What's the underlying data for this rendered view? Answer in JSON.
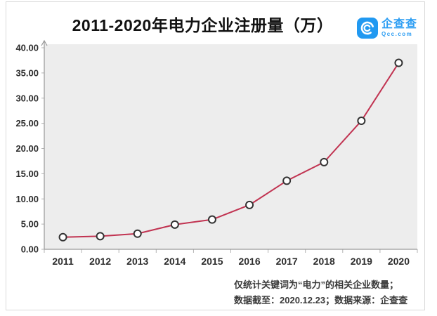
{
  "header": {
    "title": "2011-2020年电力企业注册量（万）",
    "logo": {
      "name": "企查查",
      "domain": "Qcc.com",
      "brand_color": "#2199f1"
    }
  },
  "chart_data": {
    "type": "line",
    "title": "2011-2020年电力企业注册量（万）",
    "categories": [
      "2011",
      "2012",
      "2013",
      "2014",
      "2015",
      "2016",
      "2017",
      "2018",
      "2019",
      "2020"
    ],
    "values": [
      2.4,
      2.6,
      3.1,
      4.9,
      5.9,
      8.8,
      13.6,
      17.3,
      25.5,
      37.0
    ],
    "xlabel": "",
    "ylabel": "",
    "ylim": [
      0,
      40
    ],
    "yticks": [
      0,
      5,
      10,
      15,
      20,
      25,
      30,
      35,
      40
    ],
    "ytick_labels": [
      "0.00",
      "5.00",
      "10.00",
      "15.00",
      "20.00",
      "25.00",
      "30.00",
      "35.00",
      "40.00"
    ],
    "grid": false,
    "legend": false,
    "marker": "open-circle",
    "colors": {
      "line": "#c13351",
      "marker_stroke": "#333333",
      "marker_fill": "#ffffff",
      "panel_bg": "#ededed",
      "axis": "#999999",
      "tick": "#b3b3b3",
      "label": "#2d2d2d"
    }
  },
  "footer": {
    "line1": "仅统计关键词为“电力”的相关企业数量；",
    "line2": "数据截至：2020.12.23；数据来源：企查查"
  }
}
